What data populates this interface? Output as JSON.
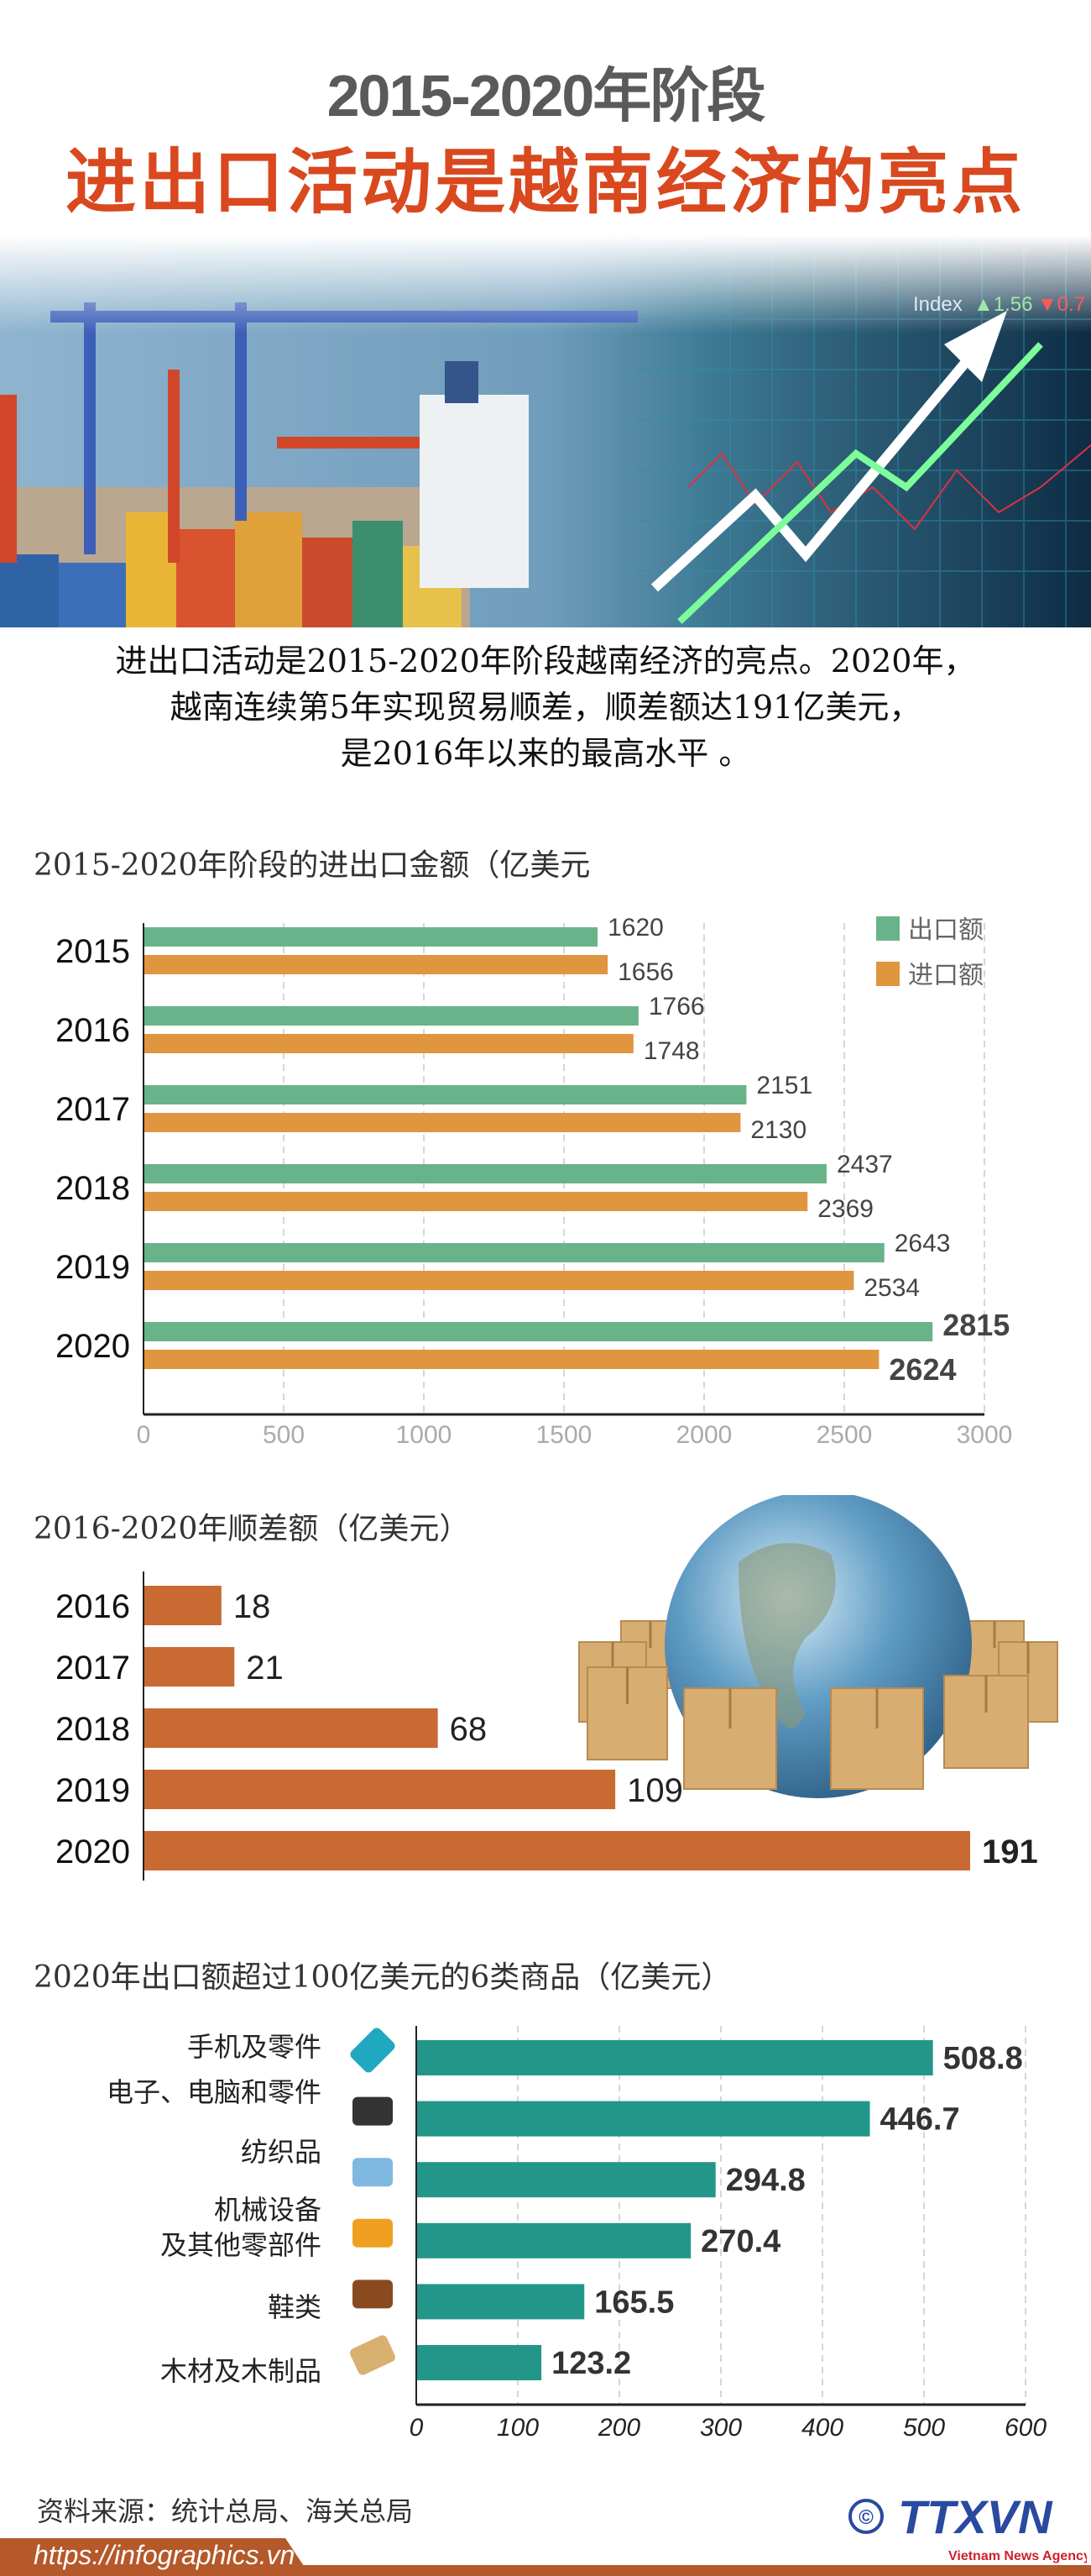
{
  "header": {
    "title_line1": "2015-2020年阶段",
    "title_line2": "进出口活动是越南经济的亮点"
  },
  "photo": {
    "ticker_label": "Index",
    "ticker_up": "▲1.56",
    "ticker_down": "▼0.7"
  },
  "intro": {
    "lines": [
      "进出口活动是2015-2020年阶段越南经济的亮点。2020年，",
      "越南连续第5年实现贸易顺差，顺差额达191亿美元，",
      "是2016年以来的最高水平 。"
    ]
  },
  "chart_data": [
    {
      "type": "bar",
      "orientation": "horizontal",
      "title": "2015-2020年阶段的进出口金额（亿美元",
      "categories": [
        "2015",
        "2016",
        "2017",
        "2018",
        "2019",
        "2020"
      ],
      "series": [
        {
          "name": "出口额",
          "color": "#69b38a",
          "values": [
            1620,
            1766,
            2151,
            2437,
            2643,
            2815
          ]
        },
        {
          "name": "进口额",
          "color": "#e0953f",
          "values": [
            1656,
            1748,
            2130,
            2369,
            2534,
            2624
          ]
        }
      ],
      "xlim": [
        0,
        3000
      ],
      "xticks": [
        0,
        500,
        1000,
        1500,
        2000,
        2500,
        3000
      ],
      "grid": true,
      "legend": "top-right"
    },
    {
      "type": "bar",
      "orientation": "horizontal",
      "title": "2016-2020年顺差额（亿美元）",
      "categories": [
        "2016",
        "2017",
        "2018",
        "2019",
        "2020"
      ],
      "values": [
        18,
        21,
        68,
        109,
        191
      ],
      "color": "#c96a33",
      "grid": false
    },
    {
      "type": "bar",
      "orientation": "horizontal",
      "title": "2020年出口额超过100亿美元的6类商品（亿美元）",
      "categories": [
        {
          "lines": [
            "手机及零件"
          ],
          "icon": "smartphone-icon"
        },
        {
          "lines": [
            "电子、电脑和零件"
          ],
          "icon": "computer-icon"
        },
        {
          "lines": [
            "纺织品"
          ],
          "icon": "clothing-icon"
        },
        {
          "lines": [
            "机械设备",
            "及其他零部件"
          ],
          "icon": "wrench-icon"
        },
        {
          "lines": [
            "鞋类"
          ],
          "icon": "shoes-icon"
        },
        {
          "lines": [
            "木材及木制品"
          ],
          "icon": "wood-icon"
        }
      ],
      "values": [
        508.8,
        446.7,
        294.8,
        270.4,
        165.5,
        123.2
      ],
      "value_labels": [
        "508.8",
        "446.7",
        "294.8",
        "270.4",
        "165.5",
        "123.2"
      ],
      "color": "#23968a",
      "xlim": [
        0,
        600
      ],
      "xticks": [
        0,
        100,
        200,
        300,
        400,
        500,
        600
      ],
      "grid": true
    }
  ],
  "footer": {
    "source": "资料来源：统计总局、海关总局",
    "url": "https://infographics.vn",
    "copyright": "©",
    "logo_text": "TTXVN",
    "logo_subtitle": "Vietnam News Agency"
  }
}
